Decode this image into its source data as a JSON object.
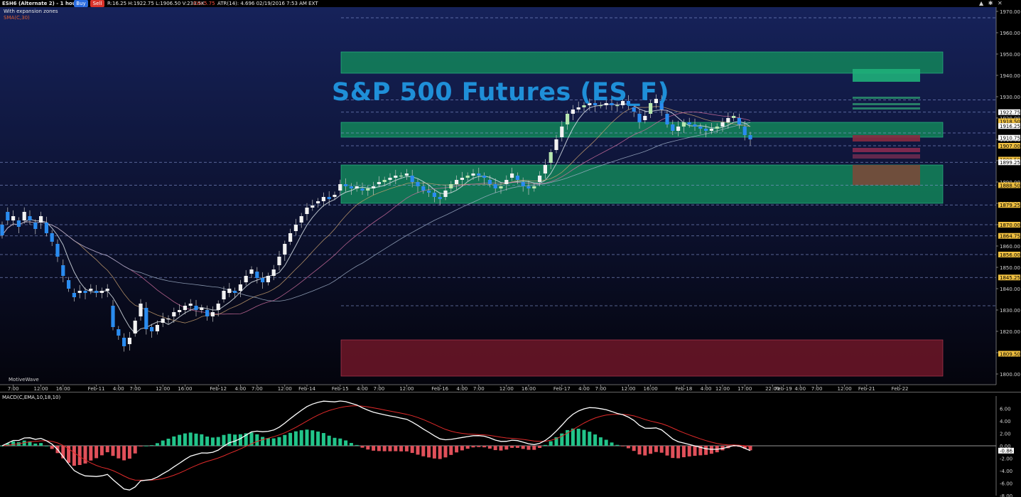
{
  "header": {
    "symbol": "ESH6 (Alternate 2) - 1 hour",
    "buy_label": "Buy",
    "sell_label": "Sell",
    "range_text": "R:16.25  H:1922.75  L:1906.50  V:233.5K",
    "change_text": "CH:-5.75",
    "atr_text": "ATR(14): 4.696  02/19/2016 7:53 AM  EXT",
    "study_line1": "With expansion zones",
    "study_line2": "SMA(C,30)",
    "watermark": "MotiveWave",
    "corner_icons": "▲ ✱ ✕",
    "colors": {
      "buy": "#2a6ce0",
      "sell": "#d8322a",
      "change": "#ff5040"
    }
  },
  "overlay_title": "S&P 500 Futures  (ES_F)",
  "chart_data": {
    "type": "candlestick",
    "ylim": [
      1795,
      1972
    ],
    "y_ticks": [
      1970,
      1960,
      1950,
      1940,
      1930,
      1920,
      1910,
      1900,
      1890,
      1880,
      1870,
      1860,
      1850,
      1840,
      1830,
      1820,
      1810,
      1800
    ],
    "y_tick_labels": [
      "1970.00",
      "1960.00",
      "1950.00",
      "1940.00",
      "1930.00",
      "1920.00",
      "1910.00",
      "1900.00",
      "1890.00",
      "1880.00",
      "1870.00",
      "1860.00",
      "1850.00",
      "1840.00",
      "1830.00",
      "1820.00",
      "1810.00",
      "1800.00"
    ],
    "x_labels": [
      {
        "i": 2,
        "t": "7:00"
      },
      {
        "i": 7,
        "t": "12:00"
      },
      {
        "i": 11,
        "t": "16:00"
      },
      {
        "i": 17,
        "t": "Feb-11"
      },
      {
        "i": 21,
        "t": "4:00"
      },
      {
        "i": 24,
        "t": "7:00"
      },
      {
        "i": 29,
        "t": "12:00"
      },
      {
        "i": 33,
        "t": "16:00"
      },
      {
        "i": 39,
        "t": "Feb-12"
      },
      {
        "i": 43,
        "t": "4:00"
      },
      {
        "i": 46,
        "t": "7:00"
      },
      {
        "i": 51,
        "t": "12:00"
      },
      {
        "i": 55,
        "t": "Feb-14"
      },
      {
        "i": 61,
        "t": "Feb-15"
      },
      {
        "i": 65,
        "t": "4:00"
      },
      {
        "i": 68,
        "t": "7:00"
      },
      {
        "i": 73,
        "t": "12:00"
      },
      {
        "i": 79,
        "t": "Feb-16"
      },
      {
        "i": 83,
        "t": "4:00"
      },
      {
        "i": 86,
        "t": "7:00"
      },
      {
        "i": 91,
        "t": "12:00"
      },
      {
        "i": 95,
        "t": "16:00"
      },
      {
        "i": 101,
        "t": "Feb-17"
      },
      {
        "i": 105,
        "t": "4:00"
      },
      {
        "i": 108,
        "t": "7:00"
      },
      {
        "i": 113,
        "t": "12:00"
      },
      {
        "i": 117,
        "t": "16:00"
      },
      {
        "i": 123,
        "t": "Feb-18"
      },
      {
        "i": 127,
        "t": "4:00"
      },
      {
        "i": 130,
        "t": "12:00"
      },
      {
        "i": 134,
        "t": "17:00"
      },
      {
        "i": 139,
        "t": "22:00"
      },
      {
        "i": 141,
        "t": "Feb-19"
      },
      {
        "i": 144,
        "t": "4:00"
      },
      {
        "i": 147,
        "t": "7:00"
      },
      {
        "i": 152,
        "t": "12:00"
      },
      {
        "i": 156,
        "t": "Feb-21"
      },
      {
        "i": 162,
        "t": "Feb-22"
      }
    ],
    "closes": [
      1865,
      1872,
      1874,
      1869,
      1876,
      1872,
      1868,
      1874,
      1866,
      1862,
      1855,
      1846,
      1840,
      1836,
      1839,
      1838,
      1840,
      1838,
      1839,
      1840,
      1822,
      1818,
      1813,
      1817,
      1825,
      1833,
      1821,
      1820,
      1823,
      1826,
      1826,
      1829,
      1830,
      1832,
      1833,
      1830,
      1831,
      1827,
      1829,
      1833,
      1839,
      1840,
      1838,
      1842,
      1846,
      1849,
      1845,
      1843,
      1846,
      1849,
      1855,
      1861,
      1866,
      1870,
      1874,
      1878,
      1879,
      1881,
      1883,
      1882,
      1884,
      1889,
      1888,
      1887,
      1888,
      1886,
      1887,
      1888,
      1890,
      1891,
      1892,
      1893,
      1893,
      1894,
      1890,
      1888,
      1886,
      1885,
      1883,
      1882,
      1886,
      1889,
      1891,
      1892,
      1893,
      1894,
      1893,
      1892,
      1889,
      1887,
      1888,
      1891,
      1894,
      1891,
      1888,
      1887,
      1888,
      1893,
      1898,
      1904,
      1910,
      1916,
      1922,
      1924,
      1925,
      1926,
      1927,
      1926,
      1926,
      1927,
      1926,
      1926,
      1928,
      1926,
      1923,
      1918,
      1921,
      1927,
      1929,
      1924,
      1917,
      1914,
      1916,
      1918,
      1917,
      1916,
      1915,
      1914,
      1915,
      1916,
      1918,
      1920,
      1921,
      1917,
      1912,
      1910
    ],
    "open_offsets": [
      -5,
      -4,
      2,
      -3,
      4,
      -2,
      -3,
      3,
      -5,
      -4,
      -6,
      -5,
      -4,
      -2,
      1,
      -1,
      1,
      -1,
      1,
      1,
      -10,
      -3,
      -4,
      3,
      6,
      6,
      -10,
      -2,
      3,
      2,
      0,
      2,
      1,
      2,
      1,
      -2,
      1,
      -3,
      2,
      3,
      4,
      2,
      -1,
      3,
      3,
      2,
      -3,
      -2,
      3,
      3,
      4,
      5,
      4,
      3,
      3,
      3,
      1,
      1,
      2,
      -1,
      1,
      3,
      -1,
      -1,
      1,
      -1,
      1,
      1,
      1,
      1,
      1,
      1,
      0,
      1,
      -3,
      -2,
      -2,
      -1,
      -2,
      -1,
      3,
      2,
      2,
      1,
      1,
      1,
      -1,
      -1,
      -2,
      -2,
      1,
      2,
      2,
      -2,
      -2,
      -1,
      1,
      3,
      4,
      5,
      5,
      5,
      5,
      2,
      1,
      1,
      1,
      -1,
      0,
      1,
      -1,
      0,
      2,
      -2,
      -2,
      -4,
      2,
      5,
      2,
      -4,
      -5,
      -3,
      2,
      2,
      -1,
      -1,
      -1,
      -1,
      1,
      1,
      2,
      2,
      1,
      -3,
      -4,
      -2
    ],
    "zones": [
      {
        "kind": "green",
        "from": 1941,
        "to": 1951
      },
      {
        "kind": "green",
        "from": 1911,
        "to": 1918
      },
      {
        "kind": "green",
        "from": 1880,
        "to": 1898
      },
      {
        "kind": "red",
        "from": 1799,
        "to": 1816
      }
    ],
    "levels": [
      1967,
      1928.5,
      1922.75,
      1913,
      1907,
      1899.25,
      1888.5,
      1879.25,
      1870,
      1864.75,
      1856,
      1845.25,
      1832
    ],
    "price_tags": [
      {
        "v": 1922.75,
        "t": "1922.75",
        "color": "#ffffff"
      },
      {
        "v": 1918.5,
        "t": "1918.50",
        "color": "#f0c040"
      },
      {
        "v": 1916.25,
        "t": "1916.25",
        "color": "#ffffff"
      },
      {
        "v": 1910.75,
        "t": "1910.75",
        "color": "#ffffff"
      },
      {
        "v": 1907,
        "t": "1907.00",
        "color": "#f0c040"
      },
      {
        "v": 1900.5,
        "t": "1900.50",
        "color": "#f0c040"
      },
      {
        "v": 1899.25,
        "t": "1899.25",
        "color": "#ffffff"
      },
      {
        "v": 1888.5,
        "t": "1888.50",
        "color": "#f0c040"
      },
      {
        "v": 1879.25,
        "t": "1879.25",
        "color": "#f0c040"
      },
      {
        "v": 1870,
        "t": "1870.00",
        "color": "#f0c040"
      },
      {
        "v": 1864.75,
        "t": "1864.75",
        "color": "#f0c040"
      },
      {
        "v": 1856,
        "t": "1856.00",
        "color": "#f0c040"
      },
      {
        "v": 1845.25,
        "t": "1845.25",
        "color": "#f0c040"
      },
      {
        "v": 1809.5,
        "t": "1809.50",
        "color": "#f0c040"
      }
    ],
    "macd": {
      "label": "MACD(C,EMA,10,18,10)",
      "ylim": [
        -8,
        8
      ],
      "ticks": [
        6,
        4,
        2,
        0,
        -2,
        -4,
        -6,
        -8
      ],
      "tick_labels": [
        "6.00",
        "4.00",
        "2.00",
        "0.00",
        "-2.00",
        "-4.00",
        "-6.00",
        "-8.00"
      ],
      "last_label": "-0.86",
      "grid": true
    }
  }
}
